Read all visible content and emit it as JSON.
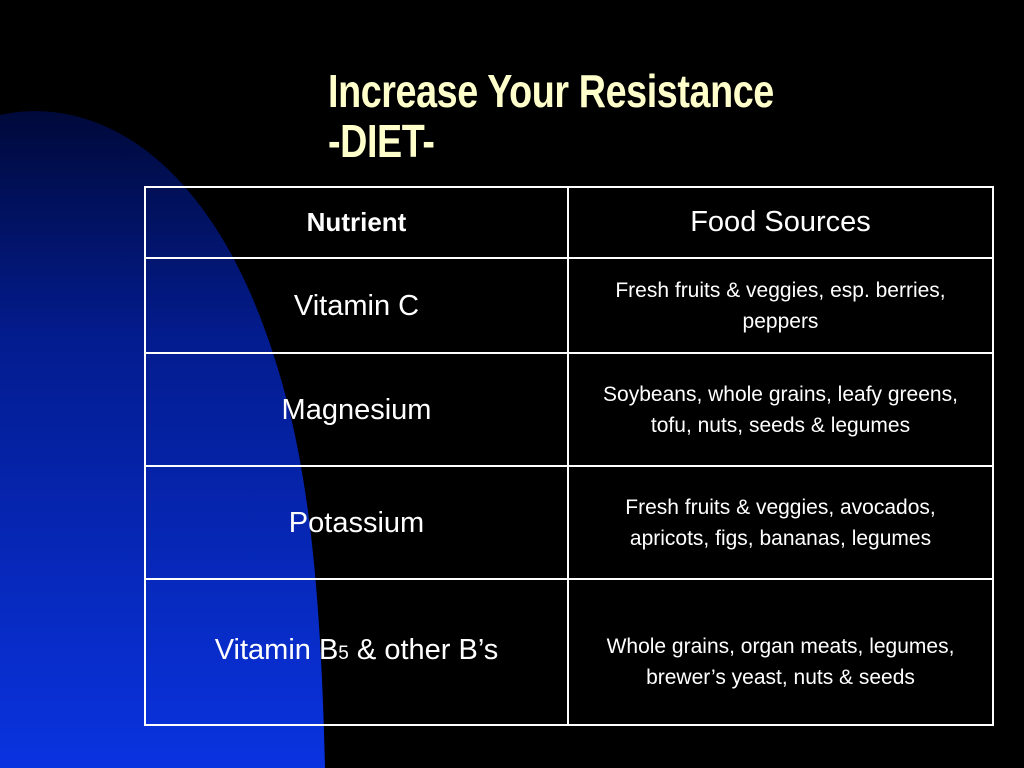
{
  "slide": {
    "title_line1": "Increase Your Resistance",
    "title_line2": "-DIET-"
  },
  "table": {
    "headers": {
      "nutrient": "Nutrient",
      "sources": "Food Sources"
    },
    "rows": [
      {
        "nutrient": "Vitamin C",
        "sources": "Fresh fruits & veggies, esp. berries, peppers"
      },
      {
        "nutrient": "Magnesium",
        "sources": "Soybeans, whole grains, leafy greens, tofu, nuts, seeds & legumes"
      },
      {
        "nutrient": "Potassium",
        "sources": "Fresh fruits & veggies, avocados, apricots, figs, bananas, legumes"
      },
      {
        "nutrient_main": "Vitamin B",
        "nutrient_subscript": "5",
        "nutrient_rest": " & other B’s",
        "sources": "Whole grains, organ meats, legumes, brewer’s yeast, nuts & seeds"
      }
    ]
  },
  "colors": {
    "background": "#000000",
    "accent_blue": "#0a2fd9",
    "title": "#ffffcc",
    "table_text": "#ffffff",
    "table_border": "#ffffff"
  }
}
